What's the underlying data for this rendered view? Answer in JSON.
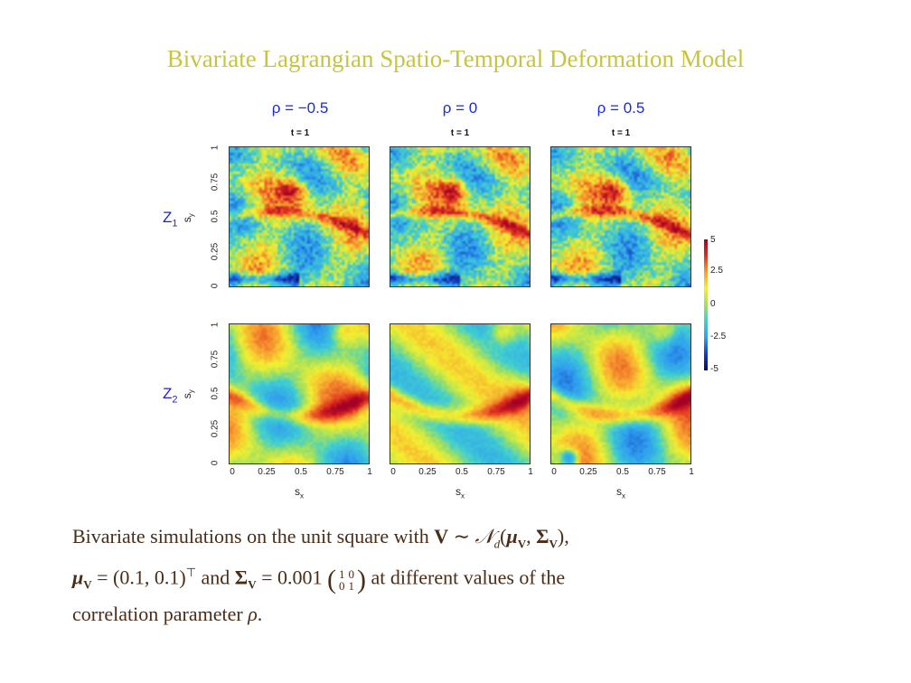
{
  "title": "Bivariate Lagrangian Spatio-Temporal Deformation Model",
  "colors": {
    "title": "#c8c440",
    "caption": "#4a2c17",
    "column_label": "#1a2bd6",
    "row_label": "#2222cc"
  },
  "columns": [
    {
      "label": "ρ = −0.5",
      "time": "t = 1"
    },
    {
      "label": "ρ = 0",
      "time": "t = 1"
    },
    {
      "label": "ρ = 0.5",
      "time": "t = 1"
    }
  ],
  "rows": [
    {
      "label": "Z",
      "sub": "1",
      "ylabel": "s",
      "ylabel_sub": "y"
    },
    {
      "label": "Z",
      "sub": "2",
      "ylabel": "s",
      "ylabel_sub": "y"
    }
  ],
  "axis": {
    "ticks": [
      "0",
      "0.25",
      "0.5",
      "0.75",
      "1"
    ],
    "xlabel": "s",
    "xlabel_sub": "x"
  },
  "colorbar": {
    "ticks": [
      "5",
      "2.5",
      "0",
      "-2.5",
      "-5"
    ],
    "range": [
      -5,
      5
    ]
  },
  "caption": {
    "line1_text": "Bivariate simulations on the unit square with ",
    "V": "V",
    "sim": " ∼ ",
    "N": "𝒩",
    "N_sub": "d",
    "open": "(",
    "mu": "μ",
    "sub_V": "V",
    "comma": ", ",
    "Sigma": "Σ",
    "close": "),",
    "mu_eq": " = (0.1, 0.1)",
    "transpose": "⊤",
    "and": " and ",
    "sigma_eq": " = 0.001 ",
    "matrix": [
      [
        "1",
        "0"
      ],
      [
        "0",
        "1"
      ]
    ],
    "line2_tail": " at different values of the",
    "line3": "correlation parameter ",
    "rho": "ρ",
    "period": "."
  }
}
